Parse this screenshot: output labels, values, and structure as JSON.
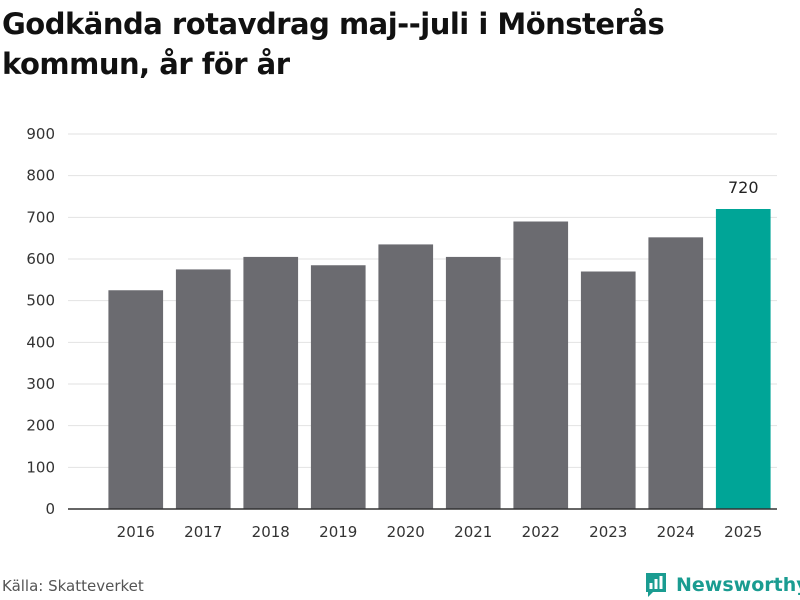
{
  "title": "Godkända rotavdrag maj--juli i Mönsterås kommun, år för år",
  "source": "Källa: Skatteverket",
  "brand": {
    "name": "Newsworthy",
    "icon": "newsworthy-chart-icon",
    "color": "#1a9c91"
  },
  "chart_data": {
    "type": "bar",
    "title": "Godkända rotavdrag maj--juli i Mönsterås kommun, år för år",
    "xlabel": "",
    "ylabel": "",
    "categories": [
      "2016",
      "2017",
      "2018",
      "2019",
      "2020",
      "2021",
      "2022",
      "2023",
      "2024",
      "2025"
    ],
    "values": [
      525,
      575,
      605,
      585,
      635,
      605,
      690,
      570,
      652,
      720
    ],
    "ylim": [
      0,
      900
    ],
    "yticks": [
      0,
      100,
      200,
      300,
      400,
      500,
      600,
      700,
      800,
      900
    ],
    "grid": true,
    "legend": "none",
    "highlight": {
      "category": "2025",
      "label": "720"
    },
    "colors": {
      "bar": "#6b6b70",
      "highlight": "#00a597",
      "grid": "#e2e2e2",
      "axis": "#333333"
    }
  }
}
